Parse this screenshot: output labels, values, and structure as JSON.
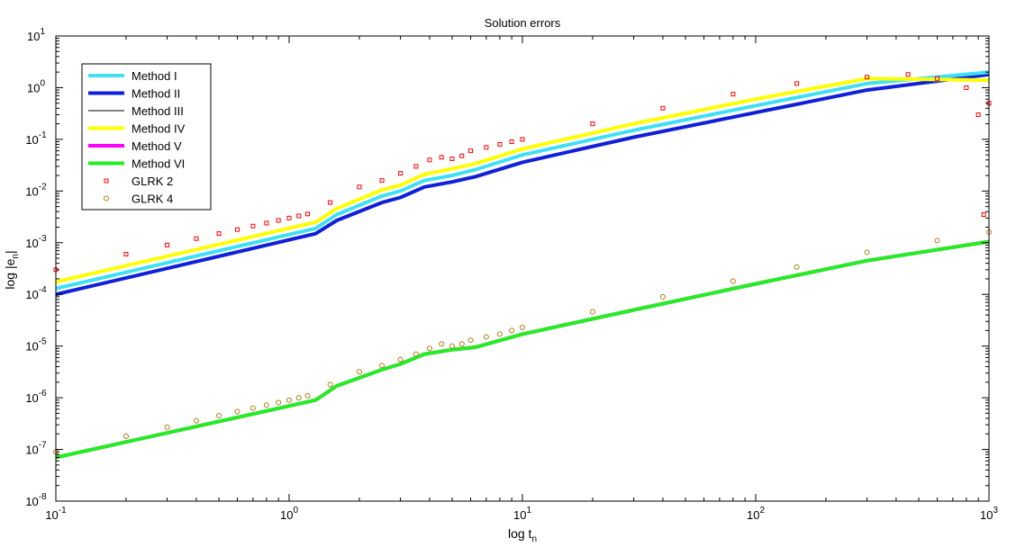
{
  "chart_data": {
    "type": "line",
    "title": "Solution errors",
    "xlabel": {
      "base": "log t",
      "sub": "n"
    },
    "ylabel": {
      "pre": "log |e",
      "sub": "n",
      "post": "|"
    },
    "xscale": "log",
    "yscale": "log",
    "xlim": [
      0.1,
      1000
    ],
    "ylim": [
      1e-08,
      10
    ],
    "grid": false,
    "legend_position": "top-left",
    "x_ticks": [
      {
        "base": "10",
        "exp": "-1"
      },
      {
        "base": "10",
        "exp": "0"
      },
      {
        "base": "10",
        "exp": "1"
      },
      {
        "base": "10",
        "exp": "2"
      },
      {
        "base": "10",
        "exp": "3"
      }
    ],
    "y_ticks": [
      {
        "base": "10",
        "exp": "-8"
      },
      {
        "base": "10",
        "exp": "-7"
      },
      {
        "base": "10",
        "exp": "-6"
      },
      {
        "base": "10",
        "exp": "-5"
      },
      {
        "base": "10",
        "exp": "-4"
      },
      {
        "base": "10",
        "exp": "-3"
      },
      {
        "base": "10",
        "exp": "-2"
      },
      {
        "base": "10",
        "exp": "-1"
      },
      {
        "base": "10",
        "exp": "0"
      },
      {
        "base": "10",
        "exp": "1"
      }
    ],
    "series": [
      {
        "name": "Method I",
        "color": "#3fe0f5",
        "style": "line",
        "x": [
          0.1,
          1.3,
          1.6,
          2.5,
          3.0,
          3.8,
          5.0,
          6.3,
          10,
          30,
          100,
          300,
          1000
        ],
        "y": [
          0.00013,
          0.0019,
          0.0035,
          0.008,
          0.01,
          0.016,
          0.02,
          0.026,
          0.05,
          0.15,
          0.45,
          1.2,
          2.0
        ]
      },
      {
        "name": "Method II",
        "color": "#1020d8",
        "style": "line",
        "x": [
          0.1,
          1.3,
          1.6,
          2.5,
          3.0,
          3.8,
          5.0,
          6.3,
          10,
          30,
          100,
          300,
          1000
        ],
        "y": [
          0.0001,
          0.0015,
          0.0027,
          0.006,
          0.0075,
          0.012,
          0.015,
          0.019,
          0.036,
          0.11,
          0.33,
          0.9,
          1.8
        ]
      },
      {
        "name": "Method III",
        "color": "#000000",
        "style": "thin",
        "x": [
          0.1,
          1.3,
          1.6,
          2.5,
          3.0,
          3.8,
          5.0,
          6.3,
          10,
          30,
          100,
          300,
          1000
        ],
        "y": [
          7e-08,
          9e-07,
          1.7e-06,
          3.5e-06,
          4.5e-06,
          7e-06,
          8.5e-06,
          9.5e-06,
          1.7e-05,
          5e-05,
          0.00016,
          0.00045,
          0.00105
        ]
      },
      {
        "name": "Method IV",
        "color": "#ffff00",
        "style": "line",
        "x": [
          0.1,
          1.3,
          1.6,
          2.5,
          3.0,
          3.8,
          5.0,
          6.3,
          10,
          30,
          100,
          300,
          1000
        ],
        "y": [
          0.000175,
          0.0025,
          0.0046,
          0.0105,
          0.013,
          0.021,
          0.027,
          0.034,
          0.065,
          0.2,
          0.6,
          1.5,
          1.4
        ]
      },
      {
        "name": "Method V",
        "color": "#ff00ff",
        "style": "line",
        "x": [
          0.1,
          1.3,
          1.6,
          2.5,
          3.0,
          3.8,
          5.0,
          6.3,
          10,
          30,
          100,
          300,
          1000
        ],
        "y": [
          7e-08,
          9e-07,
          1.7e-06,
          3.5e-06,
          4.5e-06,
          7e-06,
          8.5e-06,
          9.5e-06,
          1.7e-05,
          5e-05,
          0.00016,
          0.00045,
          0.00105
        ]
      },
      {
        "name": "Method VI",
        "color": "#22ee22",
        "style": "line",
        "x": [
          0.1,
          1.3,
          1.6,
          2.5,
          3.0,
          3.8,
          5.0,
          6.3,
          10,
          30,
          100,
          300,
          1000
        ],
        "y": [
          7e-08,
          9e-07,
          1.7e-06,
          3.5e-06,
          4.5e-06,
          7e-06,
          8.5e-06,
          9.5e-06,
          1.7e-05,
          5e-05,
          0.00016,
          0.00045,
          0.00105
        ]
      },
      {
        "name": "GLRK 2",
        "color": "#ff0000",
        "style": "square",
        "x": [
          0.1,
          0.2,
          0.3,
          0.4,
          0.5,
          0.6,
          0.7,
          0.8,
          0.9,
          1.0,
          1.1,
          1.2,
          1.5,
          2.0,
          2.5,
          3.0,
          3.5,
          4.0,
          4.5,
          5.0,
          5.5,
          6.0,
          7.0,
          8.0,
          9.0,
          10,
          20,
          40,
          80,
          150,
          300,
          450,
          600,
          800,
          900,
          950,
          1000
        ],
        "y": [
          0.0003,
          0.0006,
          0.0009,
          0.0012,
          0.0015,
          0.0018,
          0.0021,
          0.0024,
          0.0027,
          0.003,
          0.0033,
          0.0036,
          0.006,
          0.012,
          0.016,
          0.022,
          0.03,
          0.04,
          0.045,
          0.042,
          0.048,
          0.06,
          0.07,
          0.08,
          0.09,
          0.1,
          0.2,
          0.4,
          0.75,
          1.2,
          1.6,
          1.8,
          1.5,
          1.0,
          0.3,
          0.0035,
          0.5
        ]
      },
      {
        "name": "GLRK 4",
        "color": "#b07a10",
        "style": "circle",
        "x": [
          0.1,
          0.2,
          0.3,
          0.4,
          0.5,
          0.6,
          0.7,
          0.8,
          0.9,
          1.0,
          1.1,
          1.2,
          1.5,
          2.0,
          2.5,
          3.0,
          3.5,
          4.0,
          4.5,
          5.0,
          5.5,
          6.0,
          7.0,
          8.0,
          9.0,
          10,
          20,
          40,
          80,
          150,
          300,
          600,
          1000
        ],
        "y": [
          9e-08,
          1.8e-07,
          2.7e-07,
          3.6e-07,
          4.5e-07,
          5.4e-07,
          6.3e-07,
          7.2e-07,
          8.1e-07,
          9e-07,
          1e-06,
          1.1e-06,
          1.8e-06,
          3.2e-06,
          4.2e-06,
          5.5e-06,
          7e-06,
          9e-06,
          1.1e-05,
          1e-05,
          1.1e-05,
          1.3e-05,
          1.5e-05,
          1.7e-05,
          2e-05,
          2.3e-05,
          4.6e-05,
          9e-05,
          0.00018,
          0.00034,
          0.00065,
          0.0011,
          0.0016
        ]
      }
    ]
  }
}
